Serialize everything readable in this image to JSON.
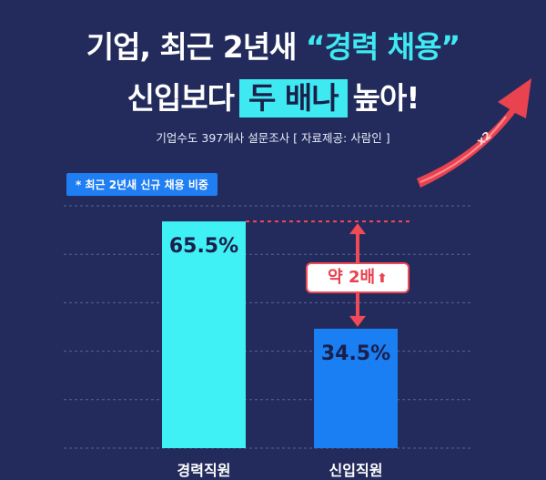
{
  "headline": {
    "line1_prefix": "기업, 최근 2년새 ",
    "line1_highlight": "“경력 채용”",
    "line2_prefix": "신입보다",
    "line2_box": "두 배나",
    "line2_suffix": "높아!"
  },
  "survey_note": "기업수도 397개사 설문조사 [ 자료제공: 사람인 ]",
  "tag_label": "* 최근 2년새 신규 채용 비중",
  "arrow_label": "x2",
  "badge": {
    "text": "약 2배",
    "arrow": "⬆"
  },
  "colors": {
    "background": "#232b5c",
    "bar_career": "#3ff0f5",
    "bar_newcomer": "#1a7ff2",
    "accent_red": "#ef4a55",
    "highlight": "#3fe9f2"
  },
  "chart_data": {
    "type": "bar",
    "categories": [
      "경력직원",
      "신입직원"
    ],
    "values": [
      65.5,
      34.5
    ],
    "value_labels": [
      "65.5%",
      "34.5%"
    ],
    "title": "",
    "xlabel": "",
    "ylabel": "",
    "ylim": [
      0,
      80
    ],
    "grid": true
  }
}
